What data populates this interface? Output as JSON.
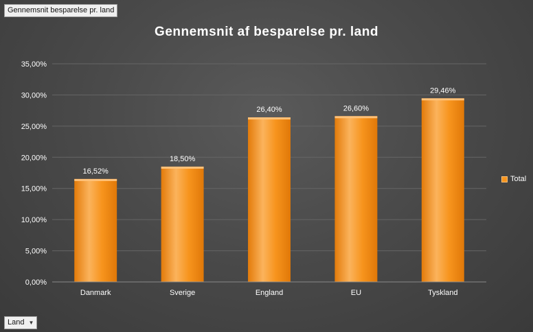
{
  "pivot": {
    "value_field": "Gennemsnit besparelse pr. land",
    "axis_field": "Land"
  },
  "icons": {
    "dropdown": "chevron-down-icon"
  },
  "colors": {
    "bar": "#f7941d",
    "bar_light": "#fbb35c",
    "bar_dark": "#e37b0a",
    "background": "#454545",
    "gridline": "#666666",
    "text": "#ffffff"
  },
  "chart_data": {
    "type": "bar",
    "title": "Gennemsnit af besparelse pr. land",
    "xlabel": "",
    "ylabel": "",
    "categories": [
      "Danmark",
      "Sverige",
      "England",
      "EU",
      "Tyskland"
    ],
    "series": [
      {
        "name": "Total",
        "values": [
          16.52,
          18.5,
          26.4,
          26.6,
          29.46
        ],
        "data_labels": [
          "16,52%",
          "18,50%",
          "26,40%",
          "26,60%",
          "29,46%"
        ]
      }
    ],
    "ylim": [
      0,
      35
    ],
    "y_ticks": [
      0,
      5,
      10,
      15,
      20,
      25,
      30,
      35
    ],
    "y_tick_labels": [
      "0,00%",
      "5,00%",
      "10,00%",
      "15,00%",
      "20,00%",
      "25,00%",
      "30,00%",
      "35,00%"
    ],
    "grid": true,
    "legend": "right"
  }
}
